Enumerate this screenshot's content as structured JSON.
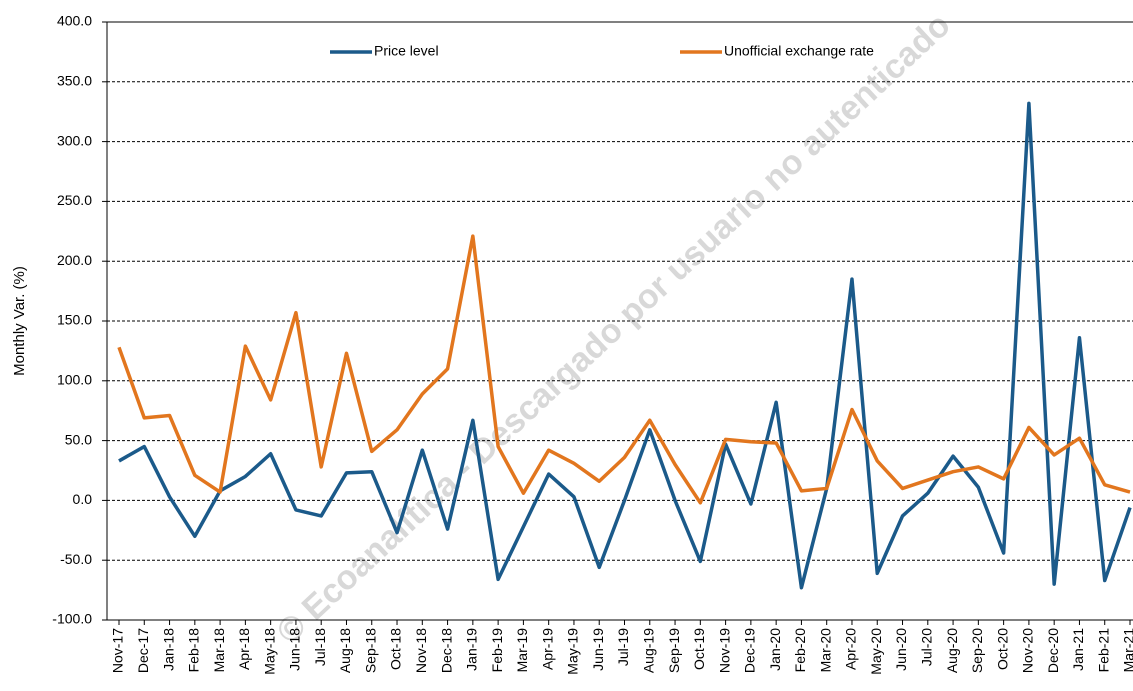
{
  "chart_data": {
    "type": "line",
    "y_label": "Monthly Var. (%)",
    "watermark": "© Ecoanalítica - Descargado por usuario no autenticado",
    "categories": [
      "Nov-17",
      "Dec-17",
      "Jan-18",
      "Feb-18",
      "Mar-18",
      "Apr-18",
      "May-18",
      "Jun-18",
      "Jul-18",
      "Aug-18",
      "Sep-18",
      "Oct-18",
      "Nov-18",
      "Dec-18",
      "Jan-19",
      "Feb-19",
      "Mar-19",
      "Apr-19",
      "May-19",
      "Jun-19",
      "Jul-19",
      "Aug-19",
      "Sep-19",
      "Oct-19",
      "Nov-19",
      "Dec-19",
      "Jan-20",
      "Feb-20",
      "Mar-20",
      "Apr-20",
      "May-20",
      "Jun-20",
      "Jul-20",
      "Aug-20",
      "Sep-20",
      "Oct-20",
      "Nov-20",
      "Dec-20",
      "Jan-21",
      "Feb-21",
      "Mar-21"
    ],
    "series": [
      {
        "name": "Price level",
        "color": "#1b5a8a",
        "values": [
          33,
          45,
          3,
          -30,
          8,
          20,
          39,
          -8,
          -13,
          23,
          24,
          -27,
          42,
          -24,
          67,
          -66,
          -22,
          22,
          3,
          -56,
          0,
          59,
          0,
          -51,
          47,
          -3,
          82,
          -73,
          10,
          185,
          -61,
          -13,
          6,
          37,
          11,
          -44,
          332,
          -70,
          136,
          -67,
          -6
        ]
      },
      {
        "name": "Unofficial exchange rate",
        "color": "#e2761e",
        "values": [
          128,
          69,
          71,
          21,
          7,
          129,
          84,
          157,
          28,
          123,
          41,
          59,
          89,
          110,
          221,
          45,
          6,
          42,
          31,
          16,
          36,
          67,
          30,
          -2,
          51,
          49,
          48,
          8,
          10,
          76,
          33,
          10,
          17,
          24,
          28,
          18,
          61,
          38,
          52,
          13,
          7
        ]
      }
    ],
    "ylim": [
      -100,
      400
    ],
    "yticks": [
      {
        "value": -100,
        "label": "-100.0"
      },
      {
        "value": -50,
        "label": "-50.0"
      },
      {
        "value": 0,
        "label": "0.0"
      },
      {
        "value": 50,
        "label": "50.0"
      },
      {
        "value": 100,
        "label": "100.0"
      },
      {
        "value": 150,
        "label": "150.0"
      },
      {
        "value": 200,
        "label": "200.0"
      },
      {
        "value": 250,
        "label": "250.0"
      },
      {
        "value": 300,
        "label": "300.0"
      },
      {
        "value": 350,
        "label": "350.0"
      },
      {
        "value": 400,
        "label": "400.0"
      }
    ],
    "grid": true,
    "legend": "top"
  }
}
